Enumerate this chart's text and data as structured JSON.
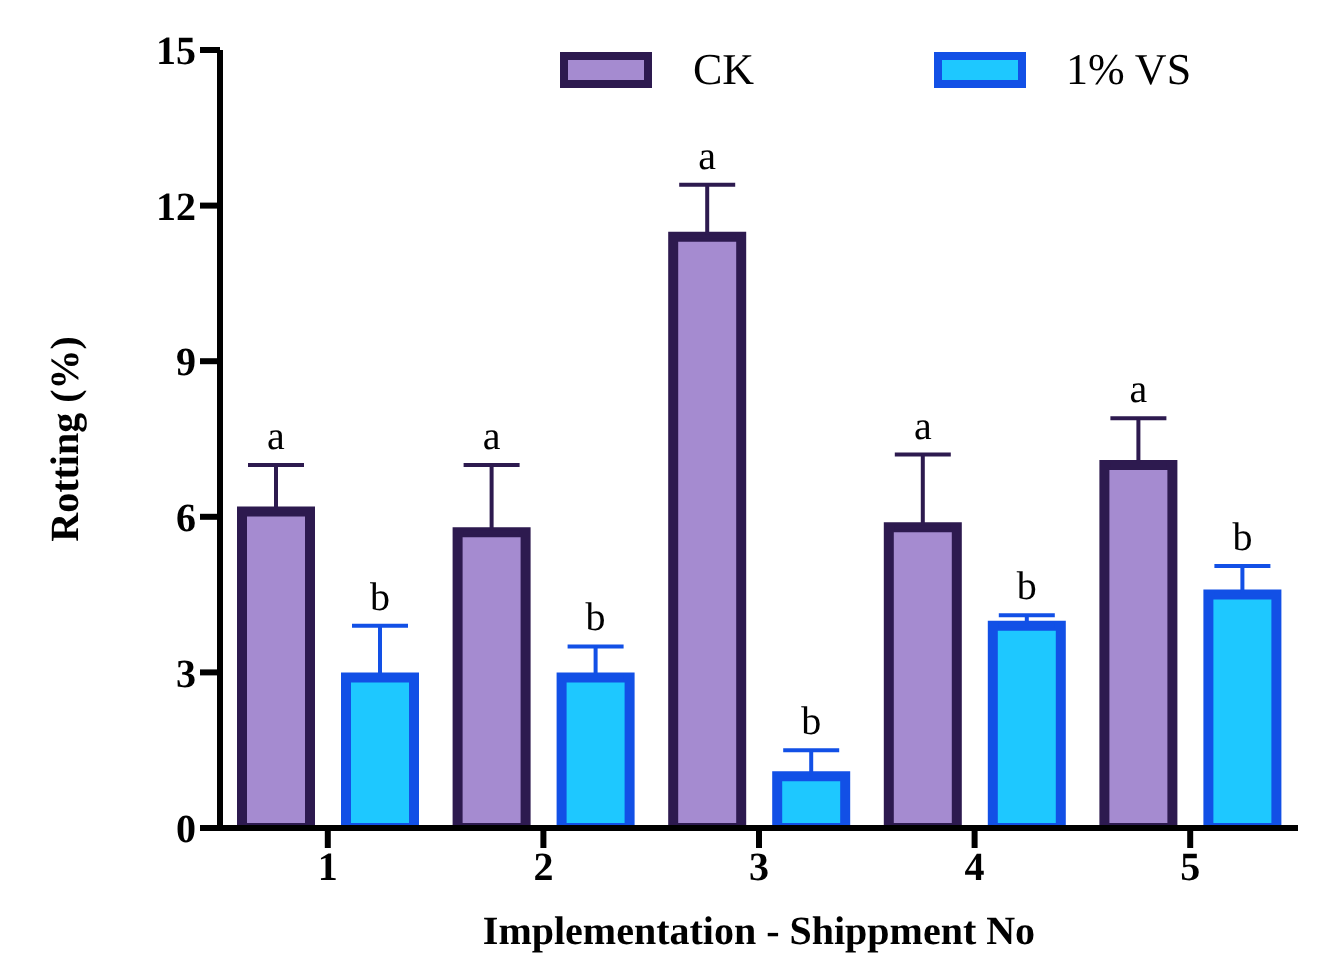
{
  "chart_data": {
    "type": "bar",
    "xlabel": "Implementation - Shippment No",
    "ylabel": "Rotting (%)",
    "categories": [
      "1",
      "2",
      "3",
      "4",
      "5"
    ],
    "series": [
      {
        "name": "CK",
        "color": "#a58bd0",
        "values": [
          6.1,
          5.7,
          11.4,
          5.8,
          7.0
        ],
        "errors": [
          [
            6.1,
            7.0
          ],
          [
            5.7,
            7.0
          ],
          [
            11.4,
            12.4
          ],
          [
            5.8,
            7.2
          ],
          [
            7.0,
            7.9
          ]
        ]
      },
      {
        "name": "1% VS",
        "color": "#1ec8ff",
        "values": [
          2.9,
          2.9,
          1.0,
          3.9,
          4.5
        ],
        "errors": [
          [
            2.9,
            3.9
          ],
          [
            2.9,
            3.5
          ],
          [
            1.0,
            1.5
          ],
          [
            3.9,
            4.1
          ],
          [
            4.5,
            5.05
          ]
        ]
      }
    ],
    "annotations": [
      "a",
      "b",
      "a",
      "b",
      "a",
      "b",
      "a",
      "b",
      "a",
      "b"
    ],
    "ylim": [
      0,
      15
    ],
    "yticks": [
      0,
      3,
      6,
      9,
      12,
      15
    ],
    "grid": false,
    "legend": "top"
  }
}
